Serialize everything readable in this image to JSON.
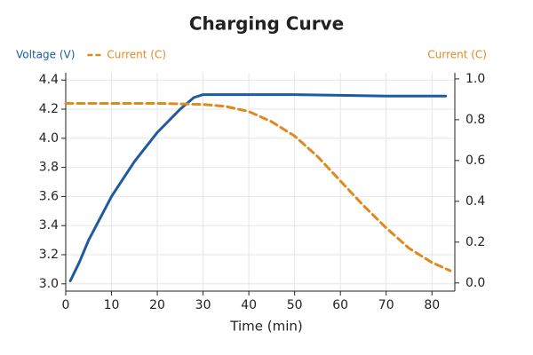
{
  "chart_data": {
    "type": "line",
    "title": "Charging Curve",
    "xlabel": "Time (min)",
    "y2label": "Current (C)",
    "xlim": [
      0,
      85
    ],
    "xticks": [
      0,
      10,
      20,
      30,
      40,
      50,
      60,
      70,
      80
    ],
    "ylim": [
      2.95,
      4.45
    ],
    "yticks": [
      {
        "value": 3.0,
        "label": "3.0"
      },
      3.2,
      3.4,
      3.6,
      3.8,
      {
        "value": 4.0,
        "label": "4.0"
      },
      4.2,
      4.4
    ],
    "y2lim": [
      -0.04,
      1.03
    ],
    "y2ticks": [
      {
        "value": 0,
        "label": "0.0"
      },
      0.2,
      0.4,
      0.6,
      0.8,
      {
        "value": 1,
        "label": "1.0"
      }
    ],
    "grid": true,
    "series": [
      {
        "name": "Voltage (V)",
        "color": "#1f5aa0",
        "axis": "y",
        "x": [
          1,
          3,
          5,
          10,
          15,
          20,
          25,
          28,
          30,
          40,
          50,
          60,
          70,
          80,
          83
        ],
        "values": [
          3.02,
          3.15,
          3.3,
          3.6,
          3.84,
          4.04,
          4.2,
          4.28,
          4.3,
          4.3,
          4.3,
          4.295,
          4.29,
          4.29,
          4.29
        ]
      },
      {
        "name": "Current (C)",
        "color": "#e08a1e",
        "axis": "y2",
        "dashed": true,
        "x": [
          0,
          20,
          30,
          35,
          40,
          45,
          50,
          55,
          60,
          65,
          70,
          75,
          80,
          84
        ],
        "values": [
          0.88,
          0.88,
          0.875,
          0.865,
          0.84,
          0.79,
          0.72,
          0.62,
          0.5,
          0.38,
          0.27,
          0.17,
          0.1,
          0.06
        ]
      }
    ]
  }
}
